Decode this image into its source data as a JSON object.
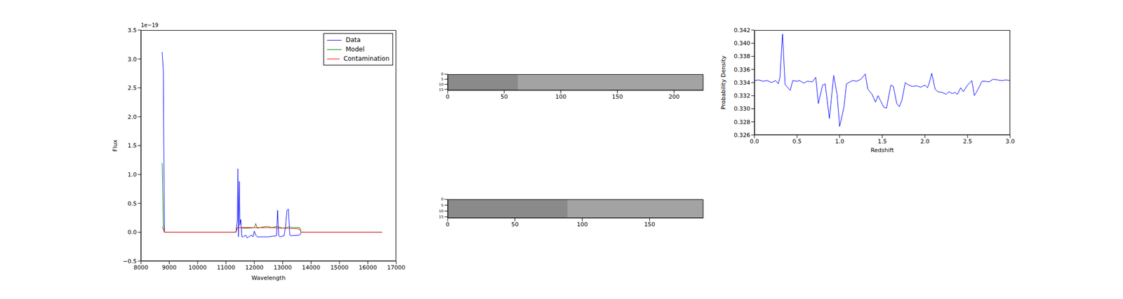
{
  "chart_data": [
    {
      "type": "line",
      "x_label": "Wavelength",
      "y_label": "Flux",
      "y_offset_label": "1e−19",
      "legend": "upper right",
      "xlim": [
        8000,
        17000
      ],
      "xticks": [
        8000,
        9000,
        10000,
        11000,
        12000,
        13000,
        14000,
        15000,
        16000,
        17000
      ],
      "ylim": [
        -0.5,
        3.5
      ],
      "yticks": [
        {
          "value": -0.5,
          "label": "−0.5"
        },
        {
          "value": 0,
          "label": "0.0"
        },
        0.5,
        {
          "value": 1,
          "label": "1.0"
        },
        1.5,
        {
          "value": 2,
          "label": "2.0"
        },
        2.5,
        {
          "value": 3,
          "label": "3.0"
        },
        3.5
      ],
      "series": [
        {
          "name": "Data",
          "color": "#0000ff",
          "x": [
            8750,
            8790,
            8830,
            9000,
            10000,
            11000,
            11350,
            11400,
            11420,
            11440,
            11470,
            11490,
            11520,
            11560,
            11600,
            11700,
            11750,
            11800,
            11900,
            11950,
            12000,
            12050,
            12100,
            12200,
            12500,
            12780,
            12820,
            12860,
            12900,
            13050,
            13100,
            13150,
            13200,
            13250,
            13300,
            13600,
            13650,
            14000,
            15000,
            16000,
            16500
          ],
          "values": [
            3.12,
            2.8,
            0,
            0,
            0,
            0,
            0,
            0.2,
            1.1,
            -0.08,
            0.88,
            0.12,
            0.22,
            -0.08,
            -0.08,
            -0.05,
            -0.1,
            -0.08,
            -0.05,
            -0.08,
            0.02,
            -0.05,
            -0.08,
            -0.08,
            -0.08,
            -0.06,
            0.38,
            -0.06,
            -0.08,
            -0.06,
            0.1,
            0.38,
            0.4,
            -0.05,
            -0.06,
            -0.05,
            0,
            0,
            0,
            0,
            0
          ]
        },
        {
          "name": "Model",
          "color": "#008000",
          "x": [
            8750,
            8790,
            8830,
            11350,
            11400,
            11500,
            11600,
            11800,
            12000,
            12050,
            12100,
            12200,
            12400,
            12500,
            12600,
            12800,
            13000,
            13200,
            13400,
            13600,
            13650,
            16500
          ],
          "values": [
            1.2,
            0.15,
            0,
            0,
            0.08,
            0.08,
            0.07,
            0.07,
            0.08,
            0.15,
            0.07,
            0.08,
            0.1,
            0.1,
            0.08,
            0.1,
            0.07,
            0.09,
            0.08,
            0.08,
            0,
            0
          ]
        },
        {
          "name": "Contamination",
          "color": "#ff0000",
          "x": [
            8750,
            8790,
            8830,
            11350,
            11400,
            12000,
            12500,
            13000,
            13500,
            13600,
            13650,
            16500
          ],
          "values": [
            0.1,
            0.05,
            0,
            0,
            0.08,
            0.08,
            0.08,
            0.07,
            0.06,
            0.05,
            0,
            0
          ]
        }
      ]
    },
    {
      "type": "image",
      "xlim": [
        0,
        226
      ],
      "xticks": [
        0,
        50,
        100,
        150,
        200
      ],
      "ylim": [
        0,
        16
      ],
      "yticks": [
        0,
        5,
        10,
        15
      ],
      "data_extent": [
        0,
        62
      ]
    },
    {
      "type": "image",
      "xlim": [
        0,
        190
      ],
      "xticks": [
        0,
        50,
        100,
        150
      ],
      "ylim": [
        0,
        16
      ],
      "yticks": [
        0,
        5,
        10,
        15
      ],
      "data_extent": [
        0,
        89
      ]
    },
    {
      "type": "line",
      "x_label": "Redshift",
      "y_label": "Probability Density",
      "xlim": [
        0,
        3
      ],
      "xticks": [
        {
          "value": 0,
          "label": "0.0"
        },
        0.5,
        {
          "value": 1,
          "label": "1.0"
        },
        1.5,
        {
          "value": 2,
          "label": "2.0"
        },
        2.5,
        {
          "value": 3,
          "label": "3.0"
        }
      ],
      "ylim": [
        0.326,
        0.342
      ],
      "yticks": [
        0.326,
        0.328,
        {
          "value": 0.33,
          "label": "0.330"
        },
        0.332,
        0.334,
        0.336,
        0.338,
        {
          "value": 0.34,
          "label": "0.340"
        },
        0.342
      ],
      "series": [
        {
          "color": "#0000ff",
          "x": [
            0.0,
            0.05,
            0.1,
            0.15,
            0.2,
            0.25,
            0.28,
            0.3,
            0.33,
            0.36,
            0.42,
            0.45,
            0.5,
            0.53,
            0.58,
            0.62,
            0.68,
            0.72,
            0.75,
            0.8,
            0.83,
            0.88,
            0.93,
            0.97,
            1.0,
            1.05,
            1.08,
            1.15,
            1.2,
            1.25,
            1.3,
            1.33,
            1.38,
            1.42,
            1.45,
            1.48,
            1.52,
            1.55,
            1.6,
            1.63,
            1.67,
            1.7,
            1.73,
            1.77,
            1.8,
            1.85,
            1.9,
            1.95,
            2.0,
            2.03,
            2.05,
            2.08,
            2.12,
            2.15,
            2.2,
            2.25,
            2.28,
            2.32,
            2.35,
            2.38,
            2.42,
            2.45,
            2.5,
            2.55,
            2.58,
            2.62,
            2.67,
            2.7,
            2.75,
            2.8,
            2.85,
            2.9,
            2.95,
            3.0
          ],
          "values": [
            0.3343,
            0.3344,
            0.3342,
            0.3343,
            0.334,
            0.3343,
            0.3338,
            0.3348,
            0.3414,
            0.3337,
            0.3328,
            0.3343,
            0.3342,
            0.3343,
            0.3339,
            0.3342,
            0.3341,
            0.3348,
            0.3308,
            0.3336,
            0.3338,
            0.3285,
            0.3351,
            0.3322,
            0.3273,
            0.3302,
            0.3338,
            0.3343,
            0.3342,
            0.3345,
            0.3353,
            0.333,
            0.3322,
            0.331,
            0.332,
            0.3312,
            0.3302,
            0.3301,
            0.3336,
            0.3334,
            0.3308,
            0.3303,
            0.3313,
            0.334,
            0.3337,
            0.3334,
            0.3335,
            0.3333,
            0.3336,
            0.3332,
            0.3339,
            0.3354,
            0.333,
            0.3326,
            0.3325,
            0.3322,
            0.3326,
            0.3323,
            0.3325,
            0.3322,
            0.3332,
            0.3326,
            0.3336,
            0.3343,
            0.332,
            0.3329,
            0.3342,
            0.3342,
            0.3341,
            0.3345,
            0.3344,
            0.3343,
            0.3344,
            0.3343
          ]
        }
      ]
    }
  ]
}
